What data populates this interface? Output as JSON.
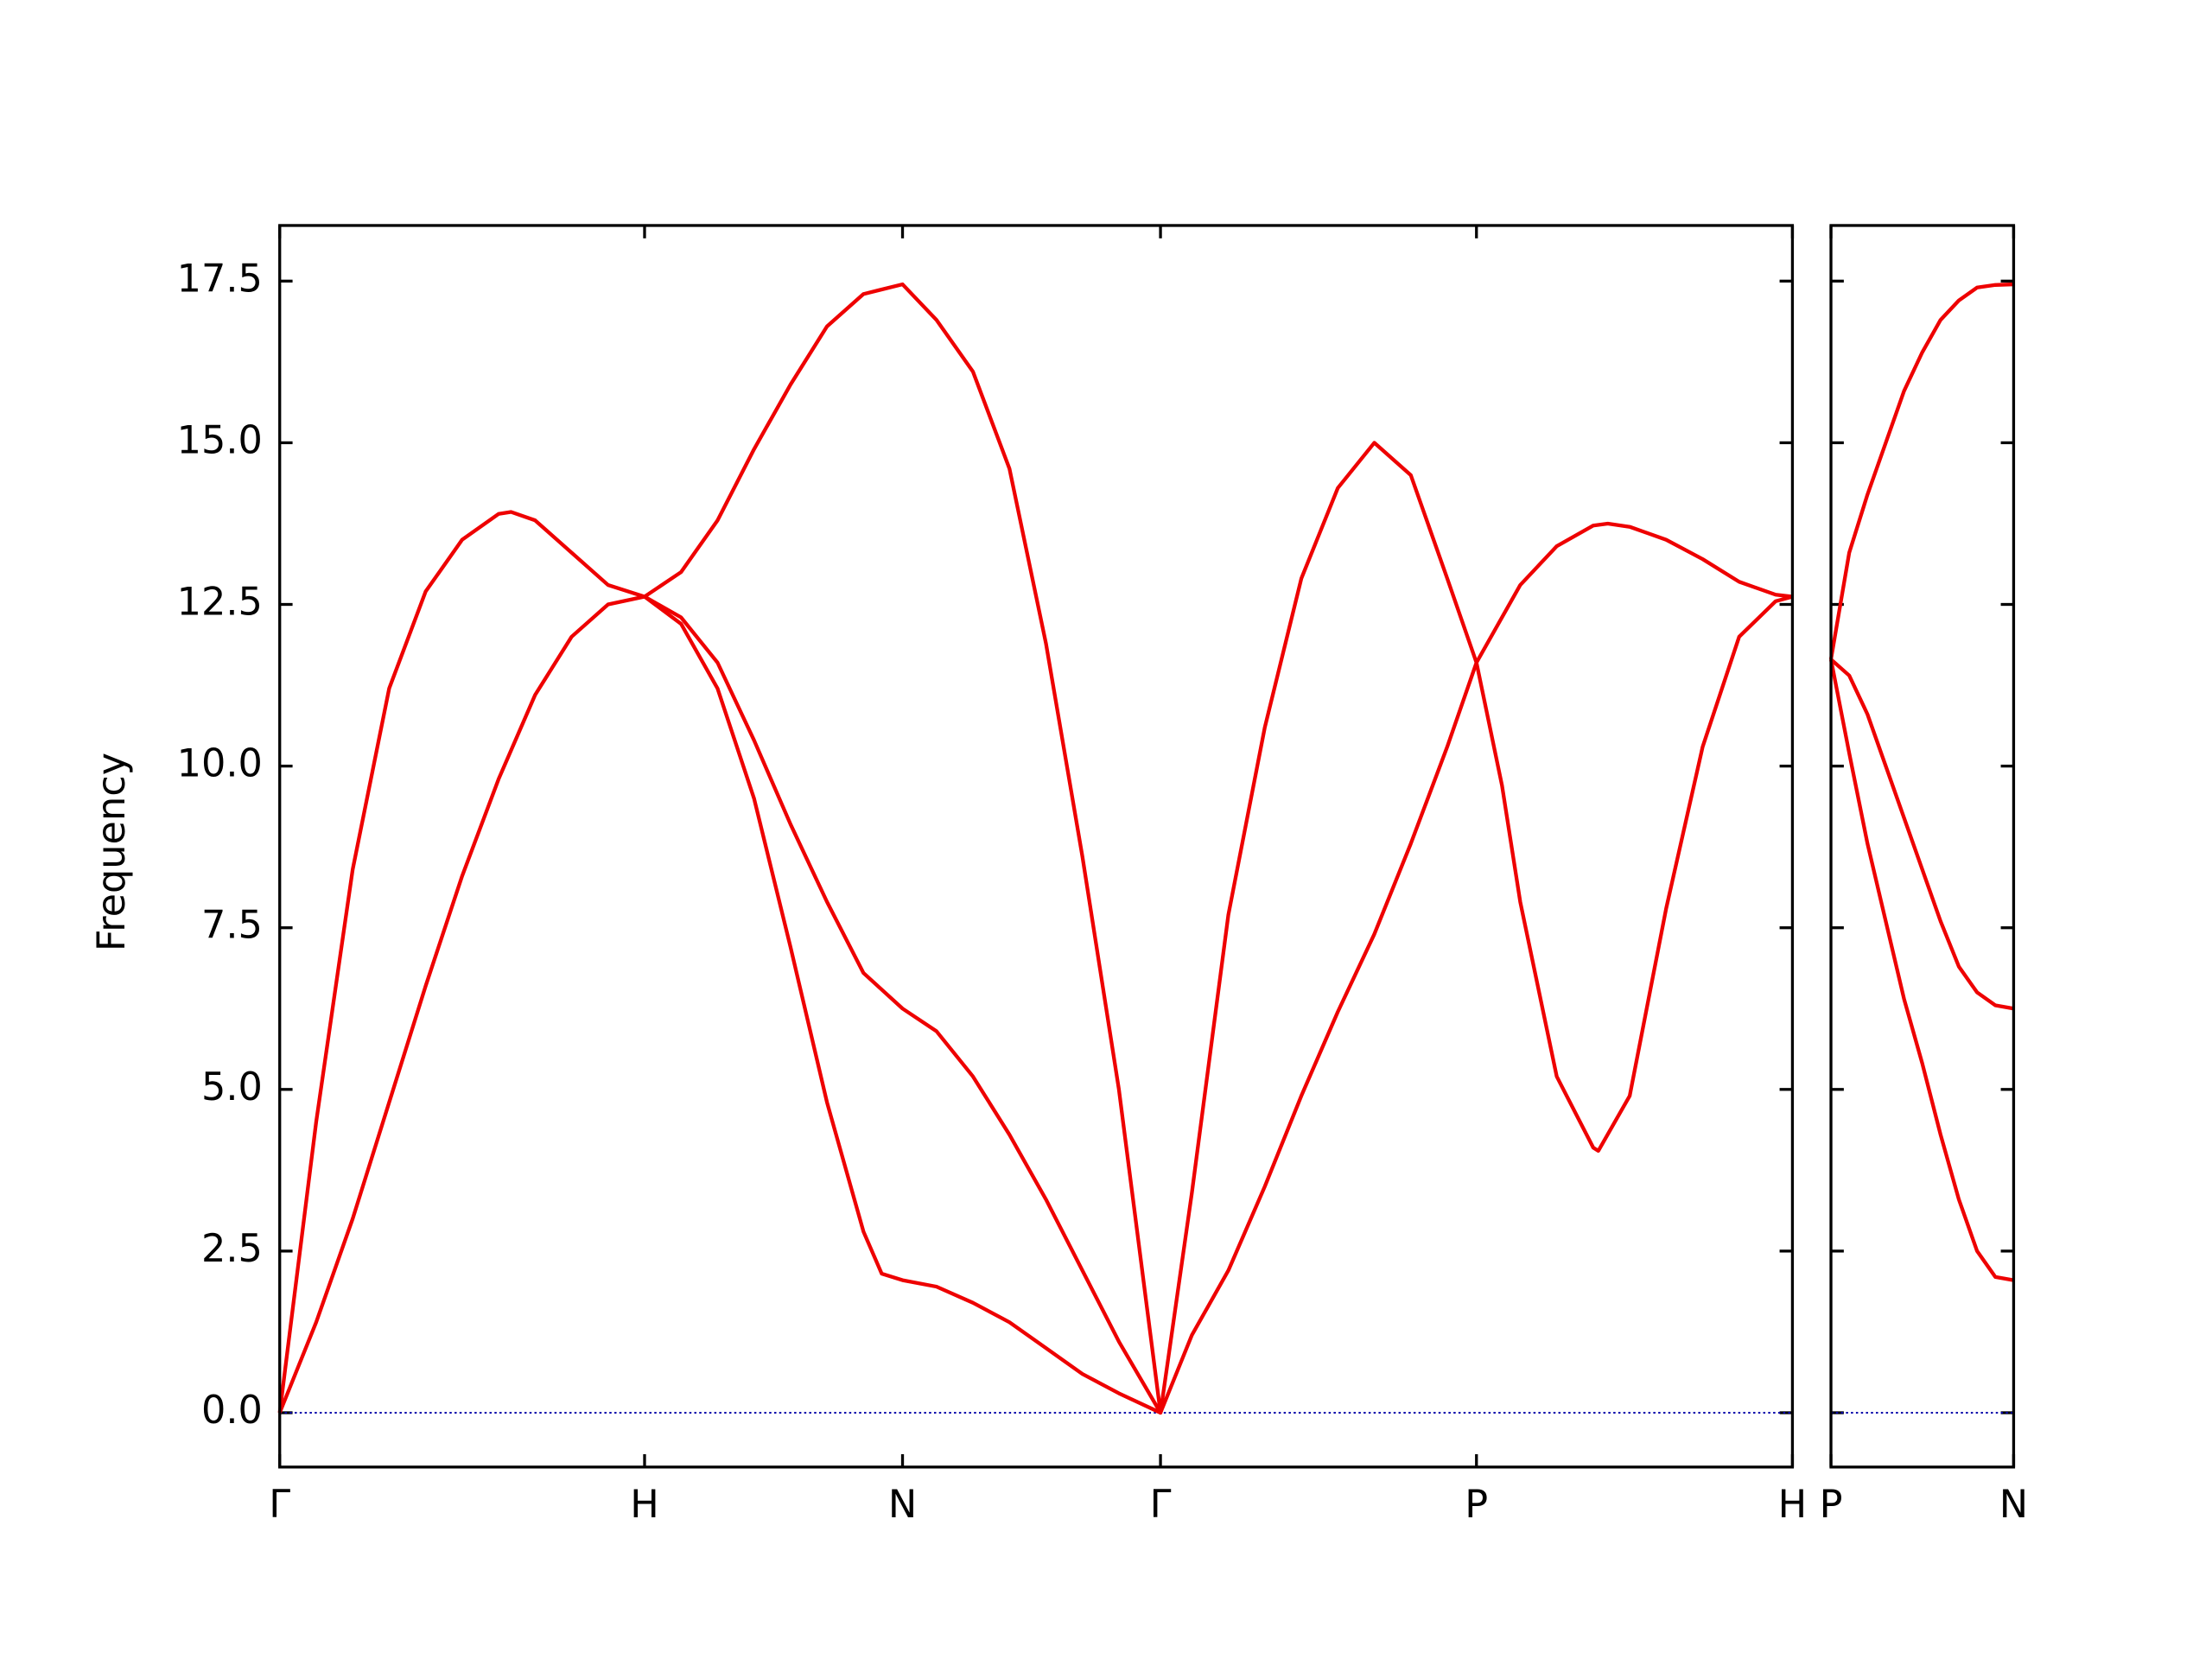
{
  "chart_data": [
    {
      "type": "line",
      "ylabel": "Frequency",
      "xlim": [
        0,
        4.146
      ],
      "xticks": [
        {
          "value": 0,
          "label": "Γ"
        },
        {
          "value": 1,
          "label": "H"
        },
        {
          "value": 1.707,
          "label": "N"
        },
        {
          "value": 2.414,
          "label": "Γ"
        },
        {
          "value": 3.28,
          "label": "P"
        },
        {
          "value": 4.146,
          "label": "H"
        }
      ],
      "ylim": [
        -0.84,
        18.36
      ],
      "yticks": [
        {
          "value": 0,
          "label": "0.0"
        },
        {
          "value": 2.5,
          "label": "2.5"
        },
        {
          "value": 5,
          "label": "5.0"
        },
        {
          "value": 7.5,
          "label": "7.5"
        },
        {
          "value": 10,
          "label": "10.0"
        },
        {
          "value": 12.5,
          "label": "12.5"
        },
        {
          "value": 15,
          "label": "15.0"
        },
        {
          "value": 17.5,
          "label": "17.5"
        }
      ],
      "hline": {
        "value": 0,
        "color": "#0000aa",
        "style": "dotted"
      },
      "series": [
        {
          "color": "#ee0000",
          "x": [
            0,
            0.1,
            0.2,
            0.3,
            0.4,
            0.5,
            0.6,
            0.7,
            0.8,
            0.9,
            1,
            1.1,
            1.2,
            1.3,
            1.4,
            1.5,
            1.6,
            1.65,
            1.707,
            1.8,
            1.9,
            2.0,
            2.1,
            2.2,
            2.3,
            2.414,
            2.5,
            2.6,
            2.7,
            2.8,
            2.9,
            3.0,
            3.1,
            3.2,
            3.28,
            3.4,
            3.5,
            3.6,
            3.64,
            3.7,
            3.8,
            3.9,
            4.0,
            4.1,
            4.146
          ],
          "values": [
            0,
            1.4,
            3.0,
            4.8,
            6.6,
            8.3,
            9.8,
            11.1,
            12.0,
            12.5,
            12.62,
            12.2,
            11.2,
            9.5,
            7.2,
            4.8,
            2.8,
            2.15,
            2.05,
            1.95,
            1.7,
            1.4,
            1.0,
            0.6,
            0.3,
            0,
            1.2,
            2.2,
            3.5,
            4.9,
            6.2,
            7.4,
            8.8,
            10.3,
            11.6,
            12.8,
            13.4,
            13.72,
            13.75,
            13.7,
            13.5,
            13.2,
            12.85,
            12.65,
            12.62
          ]
        },
        {
          "color": "#ee0000",
          "x": [
            1,
            1.1,
            1.2,
            1.3,
            1.4,
            1.5,
            1.6,
            1.707,
            1.8,
            1.9,
            2.0,
            2.1,
            2.2,
            2.3,
            2.414
          ],
          "values": [
            12.62,
            12.3,
            11.6,
            10.4,
            9.1,
            7.9,
            6.8,
            6.25,
            5.9,
            5.2,
            4.3,
            3.3,
            2.2,
            1.1,
            0
          ]
        },
        {
          "color": "#ee0000",
          "x": [
            0,
            0.1,
            0.2,
            0.3,
            0.4,
            0.5,
            0.6,
            0.634,
            0.7,
            0.8,
            0.9,
            1,
            1.1,
            1.2,
            1.3,
            1.4,
            1.5,
            1.6,
            1.707,
            1.8,
            1.9,
            2.0,
            2.1,
            2.2,
            2.3,
            2.414,
            2.5,
            2.6,
            2.7,
            2.8,
            2.9,
            3.0,
            3.1,
            3.2,
            3.28,
            3.35,
            3.4,
            3.5,
            3.6,
            3.614,
            3.7,
            3.8,
            3.9,
            4.0,
            4.1,
            4.146
          ],
          "values": [
            0,
            4.5,
            8.4,
            11.2,
            12.7,
            13.5,
            13.9,
            13.93,
            13.8,
            13.3,
            12.8,
            12.62,
            13.0,
            13.8,
            14.9,
            15.9,
            16.8,
            17.3,
            17.45,
            16.9,
            16.1,
            14.6,
            11.9,
            8.6,
            5.0,
            0,
            3.4,
            7.7,
            10.6,
            12.9,
            14.3,
            15.0,
            14.5,
            12.9,
            11.6,
            9.7,
            7.9,
            5.2,
            4.1,
            4.05,
            4.9,
            7.8,
            10.3,
            12.0,
            12.55,
            12.62
          ]
        }
      ]
    },
    {
      "type": "line",
      "xlim": [
        0,
        0.5
      ],
      "xticks": [
        {
          "value": 0,
          "label": "P"
        },
        {
          "value": 0.5,
          "label": "N"
        }
      ],
      "ylim": [
        -0.84,
        18.36
      ],
      "yticks": [
        0,
        2.5,
        5,
        7.5,
        10,
        12.5,
        15,
        17.5
      ],
      "hline": {
        "value": 0,
        "color": "#0000aa",
        "style": "dotted"
      },
      "series": [
        {
          "color": "#ee0000",
          "x": [
            0,
            0.05,
            0.1,
            0.15,
            0.2,
            0.25,
            0.3,
            0.35,
            0.4,
            0.45,
            0.5
          ],
          "values": [
            11.65,
            13.3,
            14.2,
            15.0,
            15.8,
            16.4,
            16.9,
            17.2,
            17.4,
            17.44,
            17.45
          ]
        },
        {
          "color": "#ee0000",
          "x": [
            0,
            0.05,
            0.1,
            0.15,
            0.2,
            0.25,
            0.3,
            0.35,
            0.4,
            0.45,
            0.5
          ],
          "values": [
            11.65,
            11.4,
            10.8,
            10.0,
            9.2,
            8.4,
            7.6,
            6.9,
            6.5,
            6.3,
            6.25
          ]
        },
        {
          "color": "#ee0000",
          "x": [
            0,
            0.05,
            0.1,
            0.15,
            0.2,
            0.25,
            0.3,
            0.35,
            0.4,
            0.45,
            0.5
          ],
          "values": [
            11.65,
            10.2,
            8.8,
            7.6,
            6.4,
            5.4,
            4.3,
            3.3,
            2.5,
            2.1,
            2.05
          ]
        }
      ]
    }
  ]
}
